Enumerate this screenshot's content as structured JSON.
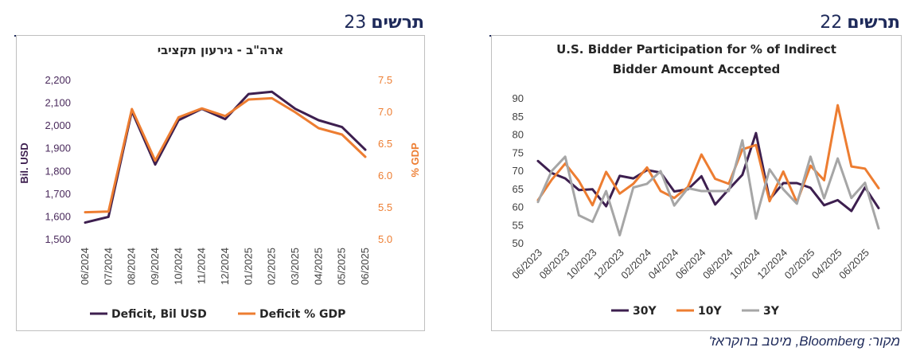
{
  "figures": {
    "right": {
      "word": "תרשים",
      "number": "22"
    },
    "left": {
      "word": "תרשים",
      "number": "23"
    }
  },
  "source": "מקור: Bloomberg, מיטב ברוקראז'",
  "chart_data": [
    {
      "type": "line",
      "title": [
        "U.S. Bidder Participation for % of Indirect",
        "Bidder Amount Accepted"
      ],
      "xlabel": "",
      "ylabel": "",
      "ylim": [
        50,
        90
      ],
      "yticks": [
        50,
        55,
        60,
        65,
        70,
        75,
        80,
        85,
        90
      ],
      "x_tick_labels": [
        "06/2023",
        "08/2023",
        "10/2023",
        "12/2023",
        "02/2024",
        "04/2024",
        "06/2024",
        "08/2024",
        "10/2024",
        "12/2024",
        "02/2025",
        "04/2025",
        "06/2025"
      ],
      "n_points": 26,
      "grid": false,
      "legend_position": "bottom",
      "series": [
        {
          "name": "30Y",
          "color": "#3d1f4f",
          "values": [
            72.8,
            69.5,
            68,
            64.8,
            65,
            60.3,
            68.7,
            68,
            70.3,
            69.6,
            64.4,
            65,
            68.6,
            60.8,
            65,
            69,
            80.5,
            62.2,
            66.7,
            66.7,
            65.4,
            60.6,
            62,
            59,
            65.5,
            59.8
          ]
        },
        {
          "name": "10Y",
          "color": "#ed7d31",
          "values": [
            62,
            67.6,
            72.1,
            67.3,
            60.6,
            69.8,
            63.8,
            66.5,
            71,
            64.5,
            62.6,
            65.6,
            74.6,
            67.9,
            66.5,
            76,
            77.2,
            61.7,
            69.9,
            61.4,
            71.5,
            67.5,
            88.2,
            71.3,
            70.7,
            65.3
          ]
        },
        {
          "name": "3Y",
          "color": "#a6a6a6",
          "values": [
            61.5,
            70,
            74,
            57.8,
            56,
            64.5,
            52.3,
            65.5,
            66.5,
            70,
            60.5,
            65.3,
            64.5,
            64.5,
            64.5,
            78.5,
            56.9,
            70.5,
            65,
            61,
            74,
            62.5,
            73.5,
            62.6,
            66.8,
            54.2
          ]
        }
      ]
    },
    {
      "type": "line",
      "title": "ארה\"ב - גירעון תקציבי",
      "categories": [
        "06/2024",
        "07/2024",
        "08/2024",
        "09/2024",
        "10/2024",
        "11/2024",
        "12/2024",
        "01/2025",
        "02/2025",
        "03/2025",
        "04/2025",
        "05/2025",
        "06/2025"
      ],
      "ylabel_left": "Bil. USD",
      "ylabel_right": "% GDP",
      "ylim_left": [
        1500,
        2200
      ],
      "yticks_left": [
        "1,500",
        "1,600",
        "1,700",
        "1,800",
        "1,900",
        "2,000",
        "2,100",
        "2,200"
      ],
      "ylim_right": [
        5.0,
        7.5
      ],
      "yticks_right": [
        "5.0",
        "5.5",
        "6.0",
        "6.5",
        "7.0",
        "7.5"
      ],
      "grid": false,
      "legend_position": "bottom",
      "series": [
        {
          "name": "Deficit, Bil USD",
          "color": "#3d1f4f",
          "axis": "left",
          "values": [
            1575,
            1600,
            2065,
            1830,
            2025,
            2075,
            2030,
            2140,
            2150,
            2075,
            2025,
            1995,
            1895
          ]
        },
        {
          "name": "Deficit % GDP",
          "color": "#ed7d31",
          "axis": "right",
          "values": [
            5.43,
            5.44,
            7.05,
            6.24,
            6.92,
            7.06,
            6.94,
            7.2,
            7.22,
            7.0,
            6.75,
            6.65,
            6.3
          ]
        }
      ]
    }
  ]
}
